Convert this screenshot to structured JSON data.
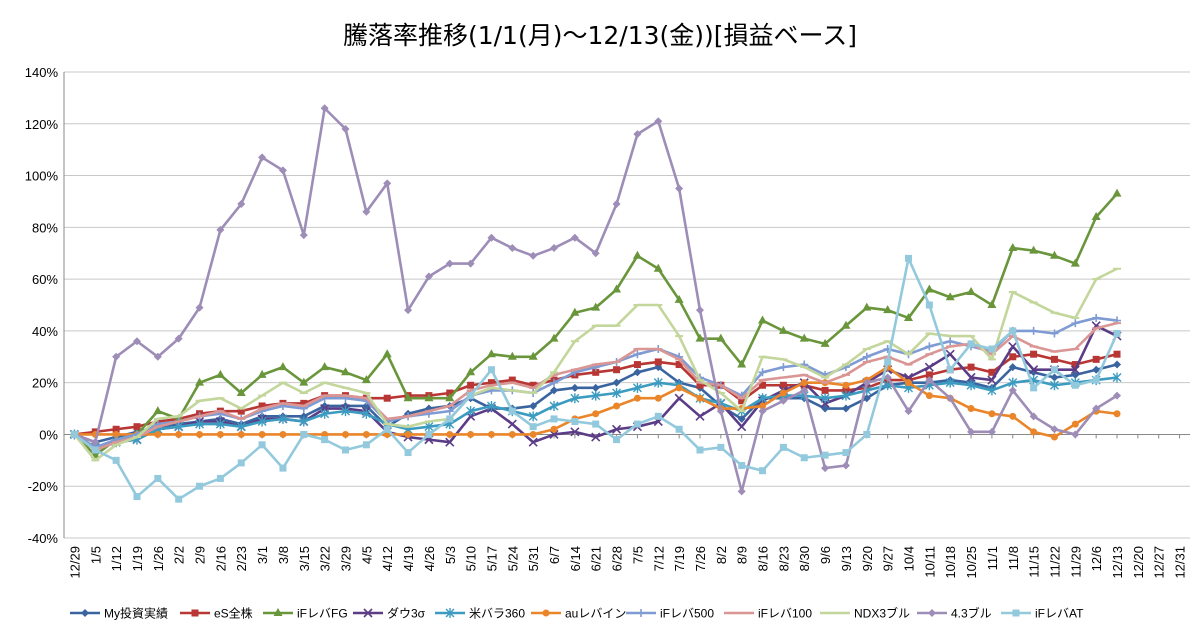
{
  "chart_data": {
    "type": "line",
    "title": "騰落率推移(1/1(月)～12/13(金))[損益ベース]",
    "xlabel": "",
    "ylabel": "",
    "ylim": [
      -40,
      140
    ],
    "y_ticks": [
      -40,
      -20,
      0,
      20,
      40,
      60,
      80,
      100,
      120,
      140
    ],
    "y_tick_labels": [
      "-40%",
      "-20%",
      "0%",
      "20%",
      "40%",
      "60%",
      "80%",
      "100%",
      "120%",
      "140%"
    ],
    "grid": true,
    "legend": "bottom",
    "x": [
      "12/29",
      "1/5",
      "1/12",
      "1/19",
      "1/26",
      "2/2",
      "2/9",
      "2/16",
      "2/23",
      "3/1",
      "3/8",
      "3/15",
      "3/22",
      "3/29",
      "4/5",
      "4/12",
      "4/19",
      "4/26",
      "5/3",
      "5/10",
      "5/17",
      "5/24",
      "5/31",
      "6/7",
      "6/14",
      "6/21",
      "6/28",
      "7/5",
      "7/12",
      "7/19",
      "7/26",
      "8/2",
      "8/9",
      "8/16",
      "8/23",
      "8/30",
      "9/6",
      "9/13",
      "9/20",
      "9/27",
      "10/4",
      "10/11",
      "10/18",
      "10/25",
      "11/1",
      "11/8",
      "11/15",
      "11/22",
      "11/29",
      "12/6",
      "12/13",
      "12/20",
      "12/27",
      "12/31"
    ],
    "series": [
      {
        "name": "My投資実績",
        "color": "#3A64A0",
        "marker": "diamond",
        "values": [
          0,
          -3,
          -1,
          1,
          3,
          4,
          5,
          6,
          4,
          7,
          7,
          7,
          11,
          11,
          11,
          3,
          8,
          10,
          11,
          14,
          10,
          10,
          11,
          17,
          18,
          18,
          20,
          24,
          26,
          20,
          18,
          11,
          6,
          14,
          14,
          14,
          10,
          10,
          14,
          19,
          20,
          20,
          21,
          20,
          18,
          26,
          24,
          22,
          23,
          25,
          27,
          null,
          null,
          null
        ]
      },
      {
        "name": "eS全株",
        "color": "#B83735",
        "marker": "square",
        "values": [
          0,
          1,
          2,
          3,
          5,
          6,
          8,
          9,
          9,
          11,
          12,
          12,
          15,
          15,
          14,
          14,
          15,
          15,
          16,
          19,
          20,
          21,
          19,
          21,
          23,
          24,
          25,
          27,
          28,
          27,
          19,
          19,
          13,
          19,
          19,
          19,
          17,
          17,
          18,
          21,
          21,
          23,
          25,
          26,
          24,
          30,
          31,
          29,
          27,
          29,
          31,
          null,
          null,
          null
        ]
      },
      {
        "name": "iFレバFG",
        "color": "#69953B",
        "marker": "triangle",
        "values": [
          0,
          -8,
          -2,
          0,
          9,
          6,
          20,
          23,
          16,
          23,
          26,
          20,
          26,
          24,
          21,
          31,
          14,
          14,
          14,
          24,
          31,
          30,
          30,
          37,
          47,
          49,
          56,
          69,
          64,
          52,
          37,
          37,
          27,
          44,
          40,
          37,
          35,
          42,
          49,
          48,
          45,
          56,
          53,
          55,
          50,
          72,
          71,
          69,
          66,
          84,
          93,
          null,
          null,
          null
        ]
      },
      {
        "name": "ダウ3σ",
        "color": "#5B3C86",
        "marker": "x",
        "values": [
          0,
          -5,
          -3,
          -2,
          2,
          3,
          5,
          5,
          3,
          6,
          6,
          5,
          10,
          10,
          9,
          1,
          -1,
          -2,
          -3,
          7,
          10,
          4,
          -3,
          0,
          1,
          -1,
          2,
          3,
          5,
          14,
          7,
          12,
          3,
          13,
          17,
          20,
          12,
          15,
          20,
          25,
          22,
          26,
          31,
          22,
          21,
          34,
          25,
          25,
          25,
          42,
          38,
          null,
          null,
          null
        ]
      },
      {
        "name": "米バラ360",
        "color": "#3C9BC0",
        "marker": "star",
        "values": [
          0,
          -5,
          -3,
          -2,
          2,
          3,
          4,
          4,
          3,
          5,
          6,
          5,
          8,
          9,
          8,
          4,
          2,
          3,
          4,
          9,
          11,
          9,
          7,
          11,
          14,
          15,
          16,
          18,
          20,
          19,
          14,
          12,
          9,
          14,
          15,
          15,
          14,
          15,
          17,
          19,
          18,
          19,
          20,
          19,
          17,
          20,
          21,
          19,
          20,
          21,
          22,
          null,
          null,
          null
        ]
      },
      {
        "name": "auレバイン",
        "color": "#EA8529",
        "marker": "circle",
        "values": [
          0,
          0,
          0,
          0,
          0,
          0,
          0,
          0,
          0,
          0,
          0,
          0,
          0,
          0,
          0,
          0,
          0,
          0,
          0,
          0,
          0,
          0,
          0,
          2,
          6,
          8,
          11,
          14,
          14,
          18,
          14,
          10,
          10,
          11,
          16,
          20,
          20,
          19,
          21,
          26,
          20,
          15,
          14,
          10,
          8,
          7,
          1,
          -1,
          4,
          9,
          8,
          null,
          null,
          null
        ]
      },
      {
        "name": "iFレバ500",
        "color": "#7E9BD3",
        "marker": "plus",
        "values": [
          0,
          -5,
          -2,
          0,
          4,
          5,
          7,
          8,
          6,
          9,
          11,
          10,
          14,
          14,
          13,
          5,
          7,
          8,
          9,
          15,
          17,
          17,
          16,
          20,
          24,
          26,
          28,
          31,
          33,
          30,
          22,
          19,
          15,
          24,
          26,
          27,
          23,
          26,
          30,
          33,
          31,
          34,
          36,
          34,
          32,
          40,
          40,
          39,
          43,
          45,
          44,
          null,
          null,
          null
        ]
      },
      {
        "name": "iFレバ100",
        "color": "#DA9694",
        "marker": "dash",
        "values": [
          0,
          -6,
          -3,
          -1,
          3,
          5,
          7,
          9,
          6,
          10,
          12,
          11,
          15,
          15,
          14,
          6,
          7,
          9,
          11,
          17,
          19,
          20,
          18,
          23,
          25,
          27,
          28,
          33,
          33,
          29,
          20,
          19,
          14,
          21,
          22,
          23,
          20,
          23,
          28,
          30,
          27,
          31,
          34,
          35,
          31,
          38,
          34,
          32,
          33,
          41,
          43,
          null,
          null,
          null
        ]
      },
      {
        "name": "NDX3ブル",
        "color": "#C3D69B",
        "marker": "dash",
        "values": [
          0,
          -10,
          -4,
          -1,
          6,
          7,
          13,
          14,
          10,
          15,
          20,
          16,
          20,
          18,
          16,
          4,
          3,
          5,
          6,
          15,
          18,
          17,
          16,
          24,
          36,
          42,
          42,
          50,
          50,
          38,
          21,
          16,
          9,
          30,
          29,
          26,
          22,
          27,
          33,
          36,
          31,
          39,
          38,
          38,
          29,
          55,
          51,
          47,
          45,
          60,
          64,
          null,
          null,
          null
        ]
      },
      {
        "name": "4.3ブル",
        "color": "#9D8DB7",
        "marker": "diamond",
        "values": [
          0,
          -3,
          30,
          36,
          30,
          37,
          49,
          79,
          89,
          107,
          102,
          77,
          126,
          118,
          86,
          97,
          48,
          61,
          66,
          66,
          76,
          72,
          69,
          72,
          76,
          70,
          89,
          116,
          121,
          95,
          48,
          9,
          -22,
          9,
          13,
          17,
          -13,
          -12,
          20,
          22,
          9,
          21,
          14,
          1,
          1,
          17,
          7,
          2,
          0,
          10,
          15,
          null,
          null,
          null
        ]
      },
      {
        "name": "iFレバAT",
        "color": "#93C9DC",
        "marker": "square",
        "values": [
          0,
          -6,
          -10,
          -24,
          -17,
          -25,
          -20,
          -17,
          -11,
          -4,
          -13,
          0,
          -2,
          -6,
          -4,
          2,
          -7,
          0,
          6,
          15,
          25,
          9,
          3,
          6,
          5,
          4,
          -2,
          4,
          7,
          2,
          -6,
          -5,
          -12,
          -14,
          -5,
          -9,
          -8,
          -7,
          0,
          28,
          68,
          50,
          25,
          35,
          33,
          40,
          18,
          25,
          19,
          21,
          39,
          null,
          null,
          null
        ]
      }
    ]
  }
}
